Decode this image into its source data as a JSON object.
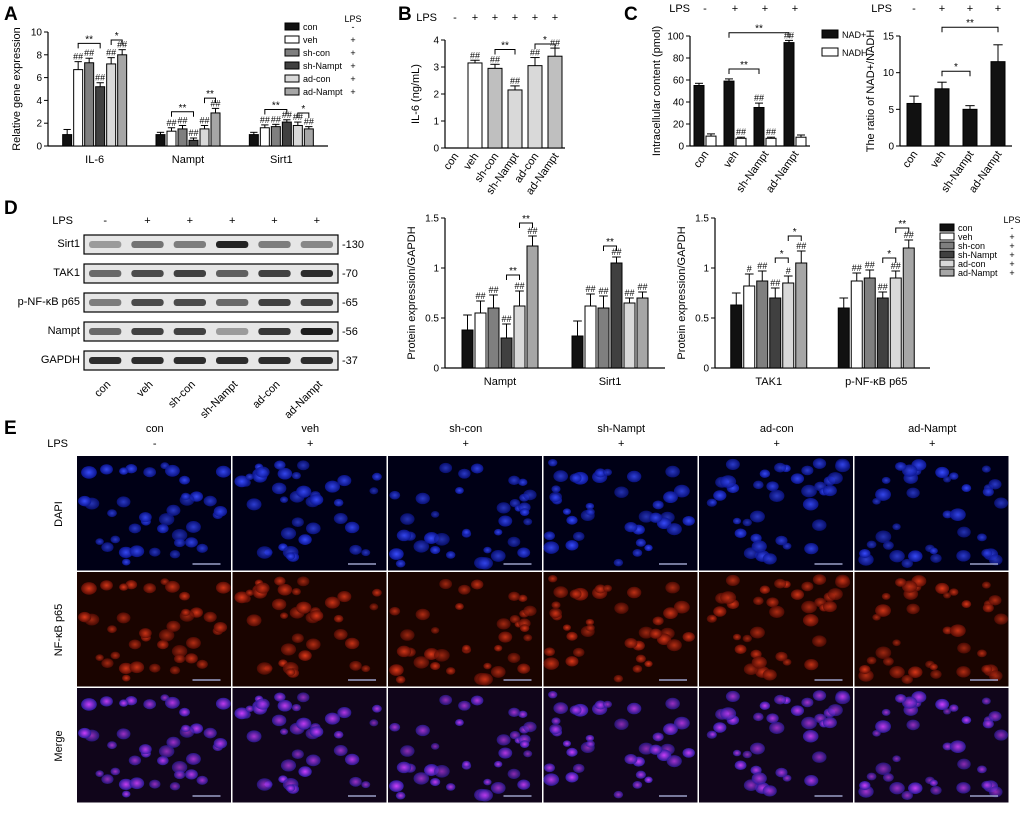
{
  "panels": {
    "A": "A",
    "B": "B",
    "C": "C",
    "D": "D",
    "E": "E"
  },
  "palette": {
    "con": "#111111",
    "veh": "#ffffff",
    "sh-con": "#7f7f7f",
    "sh-Nampt": "#404040",
    "ad-con": "#d9d9d9",
    "ad-Nampt": "#a6a6a6",
    "nad": "#111111",
    "nadh": "#ffffff"
  },
  "groups": [
    "con",
    "veh",
    "sh-con",
    "sh-Nampt",
    "ad-con",
    "ad-Nampt"
  ],
  "lps_label": "LPS",
  "lps_signs": [
    "-",
    "+",
    "+",
    "+",
    "+",
    "+"
  ],
  "chart_data": [
    {
      "id": "A",
      "type": "bar",
      "title": "",
      "ylabel": "Relative gene expression",
      "xlabel": "",
      "ylim": [
        0,
        10
      ],
      "yticks": [
        0,
        2,
        4,
        6,
        8,
        10
      ],
      "categories": [
        "IL-6",
        "Nampt",
        "Sirt1"
      ],
      "series": [
        {
          "name": "con",
          "values": [
            1.0,
            1.0,
            1.0
          ],
          "errors": [
            0.45,
            0.2,
            0.2
          ]
        },
        {
          "name": "veh",
          "values": [
            6.7,
            1.3,
            1.6
          ],
          "errors": [
            0.7,
            0.3,
            0.25
          ]
        },
        {
          "name": "sh-con",
          "values": [
            7.3,
            1.5,
            1.7
          ],
          "errors": [
            0.4,
            0.3,
            0.2
          ]
        },
        {
          "name": "sh-Nampt",
          "values": [
            5.2,
            0.5,
            2.1
          ],
          "errors": [
            0.35,
            0.2,
            0.2
          ]
        },
        {
          "name": "ad-con",
          "values": [
            7.2,
            1.5,
            1.8
          ],
          "errors": [
            0.55,
            0.3,
            0.3
          ]
        },
        {
          "name": "ad-Nampt",
          "values": [
            8.0,
            2.9,
            1.5
          ],
          "errors": [
            0.45,
            0.4,
            0.2
          ]
        }
      ],
      "bar_labels": [
        [
          "",
          "##",
          "##",
          "##",
          "##",
          "##"
        ],
        [
          "",
          "##",
          "##",
          "##",
          "##",
          "##"
        ],
        [
          "",
          "##",
          "##",
          "##",
          "##",
          "##"
        ]
      ],
      "brackets": [
        {
          "cat": 0,
          "from": 1,
          "to": 3,
          "label": "**",
          "level": 9.0
        },
        {
          "cat": 0,
          "from": 4,
          "to": 5,
          "label": "*",
          "level": 9.3
        },
        {
          "cat": 1,
          "from": 1,
          "to": 3,
          "label": "**",
          "level": 3.0
        },
        {
          "cat": 1,
          "from": 4,
          "to": 5,
          "label": "**",
          "level": 4.2
        },
        {
          "cat": 2,
          "from": 1,
          "to": 3,
          "label": "**",
          "level": 3.2
        },
        {
          "cat": 2,
          "from": 4,
          "to": 5,
          "label": "*",
          "level": 2.9
        }
      ],
      "legend_title": "LPS",
      "legend_position": "top-right"
    },
    {
      "id": "B",
      "type": "bar",
      "title": "",
      "ylabel": "IL-6 (ng/mL)",
      "xlabel": "",
      "ylim": [
        0,
        4
      ],
      "yticks": [
        0,
        1,
        2,
        3,
        4
      ],
      "categories": [
        "con",
        "veh",
        "sh-con",
        "sh-Nampt",
        "ad-con",
        "ad-Nampt"
      ],
      "values": [
        0,
        3.15,
        2.95,
        2.15,
        3.05,
        3.4
      ],
      "errors": [
        0,
        0.1,
        0.15,
        0.15,
        0.3,
        0.3
      ],
      "bar_labels": [
        "",
        "##",
        "##",
        "##",
        "##",
        "##"
      ],
      "brackets": [
        {
          "from": 2,
          "to": 3,
          "label": "**",
          "level": 3.65
        },
        {
          "from": 4,
          "to": 5,
          "label": "*",
          "level": 3.85
        }
      ]
    },
    {
      "id": "C1",
      "type": "bar",
      "title": "",
      "ylabel": "Intracellular content (pmol)",
      "xlabel": "",
      "ylim": [
        0,
        100
      ],
      "yticks": [
        0,
        20,
        40,
        60,
        80,
        100
      ],
      "categories": [
        "con",
        "veh",
        "sh-Nampt",
        "ad-Nampt"
      ],
      "series": [
        {
          "name": "NAD+",
          "values": [
            55,
            59,
            35,
            94
          ],
          "errors": [
            2,
            2,
            4,
            2
          ]
        },
        {
          "name": "NADH",
          "values": [
            9,
            7,
            7,
            8
          ],
          "errors": [
            2,
            1,
            1,
            2
          ]
        }
      ],
      "bar_labels": [
        [
          "",
          ""
        ],
        [
          "",
          "##"
        ],
        [
          "##",
          "##"
        ],
        [
          "##",
          ""
        ]
      ],
      "brackets": [
        {
          "from": 1,
          "to": 2,
          "label": "**",
          "level": 70
        },
        {
          "from": 1,
          "to": 3,
          "label": "**",
          "level": 103
        }
      ],
      "legend_position": "top-right"
    },
    {
      "id": "C2",
      "type": "bar",
      "title": "",
      "ylabel": "The ratio of NAD+/NADH",
      "xlabel": "",
      "ylim": [
        0,
        15
      ],
      "yticks": [
        0,
        5,
        10,
        15
      ],
      "categories": [
        "con",
        "veh",
        "sh-Nampt",
        "ad-Nampt"
      ],
      "values": [
        5.8,
        7.8,
        5.0,
        11.5
      ],
      "errors": [
        1.0,
        0.9,
        0.5,
        2.3
      ],
      "bar_labels": [
        "",
        "",
        "",
        ""
      ],
      "brackets": [
        {
          "from": 1,
          "to": 2,
          "label": "*",
          "level": 10.2
        },
        {
          "from": 1,
          "to": 3,
          "label": "**",
          "level": 16.2
        }
      ]
    },
    {
      "id": "D1",
      "type": "bar",
      "title": "",
      "ylabel": "Protein expression/GAPDH",
      "xlabel": "",
      "ylim": [
        0,
        1.5
      ],
      "yticks": [
        0.0,
        0.5,
        1.0,
        1.5
      ],
      "categories": [
        "Nampt",
        "Sirt1"
      ],
      "series": [
        {
          "name": "con",
          "values": [
            0.38,
            0.32
          ],
          "errors": [
            0.15,
            0.15
          ]
        },
        {
          "name": "veh",
          "values": [
            0.55,
            0.62
          ],
          "errors": [
            0.12,
            0.12
          ]
        },
        {
          "name": "sh-con",
          "values": [
            0.6,
            0.6
          ],
          "errors": [
            0.13,
            0.12
          ]
        },
        {
          "name": "sh-Nampt",
          "values": [
            0.3,
            1.05
          ],
          "errors": [
            0.14,
            0.06
          ]
        },
        {
          "name": "ad-con",
          "values": [
            0.62,
            0.65
          ],
          "errors": [
            0.15,
            0.05
          ]
        },
        {
          "name": "ad-Nampt",
          "values": [
            1.22,
            0.7
          ],
          "errors": [
            0.1,
            0.06
          ]
        }
      ],
      "bar_labels": [
        [
          "",
          "##",
          "##",
          "##",
          "##",
          "##"
        ],
        [
          "",
          "##",
          "##",
          "##",
          "##",
          "##"
        ]
      ],
      "brackets": [
        {
          "cat": 0,
          "from": 3,
          "to": 4,
          "label": "**",
          "level": 0.93
        },
        {
          "cat": 0,
          "from": 4,
          "to": 5,
          "label": "**",
          "level": 1.45
        },
        {
          "cat": 1,
          "from": 2,
          "to": 3,
          "label": "**",
          "level": 1.22
        }
      ]
    },
    {
      "id": "D2",
      "type": "bar",
      "title": "",
      "ylabel": "Protein expression/GAPDH",
      "xlabel": "",
      "ylim": [
        0,
        1.5
      ],
      "yticks": [
        0.0,
        0.5,
        1.0,
        1.5
      ],
      "categories": [
        "TAK1",
        "p-NF-κB p65"
      ],
      "series": [
        {
          "name": "con",
          "values": [
            0.63,
            0.6
          ],
          "errors": [
            0.12,
            0.1
          ]
        },
        {
          "name": "veh",
          "values": [
            0.82,
            0.87
          ],
          "errors": [
            0.12,
            0.08
          ]
        },
        {
          "name": "sh-con",
          "values": [
            0.87,
            0.9
          ],
          "errors": [
            0.1,
            0.08
          ]
        },
        {
          "name": "sh-Nampt",
          "values": [
            0.7,
            0.7
          ],
          "errors": [
            0.1,
            0.06
          ]
        },
        {
          "name": "ad-con",
          "values": [
            0.85,
            0.9
          ],
          "errors": [
            0.07,
            0.07
          ]
        },
        {
          "name": "ad-Nampt",
          "values": [
            1.05,
            1.2
          ],
          "errors": [
            0.12,
            0.08
          ]
        }
      ],
      "bar_labels": [
        [
          "",
          "#",
          "##",
          "##",
          "#",
          "##"
        ],
        [
          "",
          "##",
          "##",
          "##",
          "##",
          "##"
        ]
      ],
      "brackets": [
        {
          "cat": 0,
          "from": 3,
          "to": 4,
          "label": "*",
          "level": 1.1
        },
        {
          "cat": 0,
          "from": 4,
          "to": 5,
          "label": "*",
          "level": 1.32
        },
        {
          "cat": 1,
          "from": 3,
          "to": 4,
          "label": "*",
          "level": 1.1
        },
        {
          "cat": 1,
          "from": 4,
          "to": 5,
          "label": "**",
          "level": 1.4
        }
      ],
      "legend_title": "LPS",
      "legend_position": "top-right"
    }
  ],
  "blot": {
    "rows": [
      {
        "protein": "Sirt1",
        "size": "-130",
        "intensity": [
          0.35,
          0.55,
          0.5,
          0.95,
          0.5,
          0.45
        ]
      },
      {
        "protein": "TAK1",
        "size": "-70",
        "intensity": [
          0.6,
          0.75,
          0.8,
          0.65,
          0.8,
          0.9
        ]
      },
      {
        "protein": "p-NF-κB p65",
        "size": "-65",
        "intensity": [
          0.5,
          0.75,
          0.75,
          0.6,
          0.8,
          0.8
        ]
      },
      {
        "protein": "Nampt",
        "size": "-56",
        "intensity": [
          0.6,
          0.8,
          0.8,
          0.35,
          0.85,
          0.98
        ]
      },
      {
        "protein": "GAPDH",
        "size": "-37",
        "intensity": [
          0.9,
          0.9,
          0.9,
          0.9,
          0.9,
          0.9
        ]
      }
    ]
  },
  "micrographs": {
    "columns": [
      "con",
      "veh",
      "sh-con",
      "sh-Nampt",
      "ad-con",
      "ad-Nampt"
    ],
    "lps": [
      "-",
      "+",
      "+",
      "+",
      "+",
      "+"
    ],
    "rows": [
      "DAPI",
      "NF-κB p65",
      "Merge"
    ]
  }
}
